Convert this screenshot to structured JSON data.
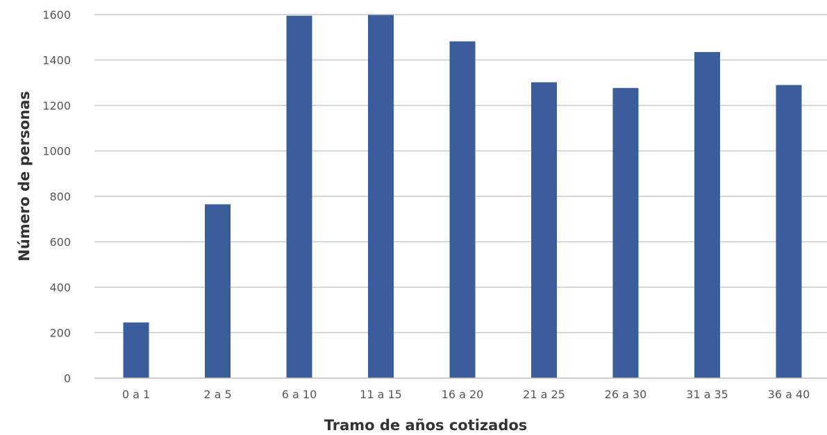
{
  "chart_data": {
    "type": "bar",
    "title": "",
    "xlabel": "Tramo de años cotizados",
    "ylabel": "Número de personas",
    "categories": [
      "0 a 1",
      "2 a 5",
      "6 a 10",
      "11 a 15",
      "16 a 20",
      "21 a 25",
      "26 a 30",
      "31 a 35",
      "36 a 40"
    ],
    "values": [
      245,
      765,
      1595,
      1598,
      1482,
      1302,
      1277,
      1435,
      1290
    ],
    "ylim": [
      0,
      1600
    ],
    "yticks": [
      "0",
      "200",
      "400",
      "600",
      "800",
      "1000",
      "1200",
      "1400",
      "1600"
    ],
    "grid": true,
    "legend": "none",
    "bar_color": "#3a5e9c"
  }
}
